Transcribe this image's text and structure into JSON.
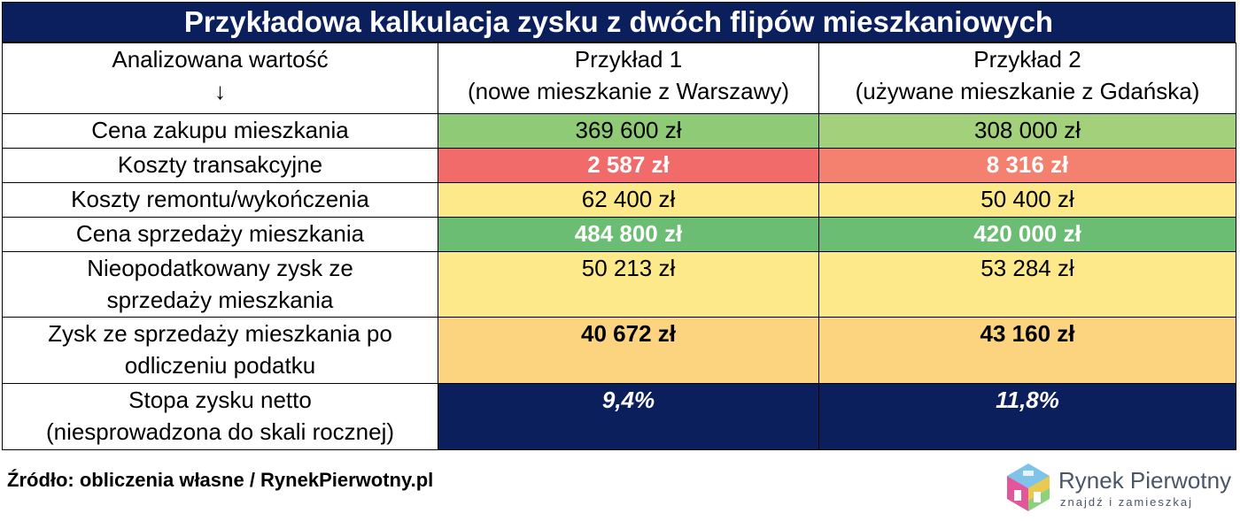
{
  "title": "Przykładowa kalkulacja zysku z dwóch flipów mieszkaniowych",
  "header": {
    "col1_line1": "Analizowana wartość",
    "col1_arrow": "↓",
    "col2_line1": "Przykład 1",
    "col2_line2": "(nowe mieszkanie z Warszawy)",
    "col3_line1": "Przykład 2",
    "col3_line2": "(używane mieszkanie z Gdańska)"
  },
  "rows": [
    {
      "label": "Cena zakupu mieszkania",
      "ex1": "369 600 zł",
      "ex2": "308 000 zł"
    },
    {
      "label": "Koszty transakcyjne",
      "ex1": "2 587 zł",
      "ex2": "8 316 zł"
    },
    {
      "label": "Koszty remontu/wykończenia",
      "ex1": "62 400 zł",
      "ex2": "50 400 zł"
    },
    {
      "label": "Cena sprzedaży mieszkania",
      "ex1": "484 800 zł",
      "ex2": "420 000 zł"
    },
    {
      "label_line1": "Nieopodatkowany zysk ze",
      "label_line2": "sprzedaży mieszkania",
      "ex1": "50 213 zł",
      "ex2": "53 284 zł"
    },
    {
      "label_line1": "Zysk ze sprzedaży mieszkania po",
      "label_line2": "odliczeniu podatku",
      "ex1": "40 672 zł",
      "ex2": "43 160 zł"
    },
    {
      "label_line1": "Stopa zysku netto",
      "label_line2": "(niesprowadzona do skali rocznej)",
      "ex1": "9,4%",
      "ex2": "11,8%"
    }
  ],
  "colors": {
    "header_navy": "#0b1f5c",
    "row1_ex1": "#8fcb77",
    "row1_ex2": "#a3d07b",
    "row2_ex1": "#f26b6b",
    "row2_ex2": "#f4806f",
    "row3": "#fde88a",
    "row4": "#6bbd74",
    "row5": "#fde88a",
    "row6": "#fcd480",
    "row7": "#0b1f5c"
  },
  "footer": {
    "source": "Źródło: obliczenia własne / RynekPierwotny.pl"
  },
  "logo": {
    "name": "Rynek Pierwotny",
    "tagline": "znajdź i zamieszkaj"
  }
}
